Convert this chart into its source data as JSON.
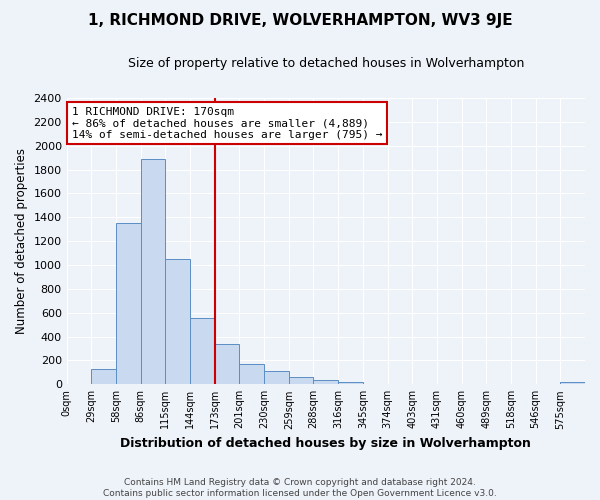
{
  "title": "1, RICHMOND DRIVE, WOLVERHAMPTON, WV3 9JE",
  "subtitle": "Size of property relative to detached houses in Wolverhampton",
  "xlabel": "Distribution of detached houses by size in Wolverhampton",
  "ylabel": "Number of detached properties",
  "footer_lines": [
    "Contains HM Land Registry data © Crown copyright and database right 2024.",
    "Contains public sector information licensed under the Open Government Licence v3.0."
  ],
  "bar_labels": [
    "0sqm",
    "29sqm",
    "58sqm",
    "86sqm",
    "115sqm",
    "144sqm",
    "173sqm",
    "201sqm",
    "230sqm",
    "259sqm",
    "288sqm",
    "316sqm",
    "345sqm",
    "374sqm",
    "403sqm",
    "431sqm",
    "460sqm",
    "489sqm",
    "518sqm",
    "546sqm",
    "575sqm"
  ],
  "bar_values": [
    0,
    130,
    1350,
    1890,
    1050,
    560,
    340,
    170,
    110,
    60,
    35,
    20,
    0,
    0,
    0,
    0,
    0,
    0,
    0,
    0,
    20
  ],
  "bar_color": "#c8d9f0",
  "bar_edge_color": "#5b8ec4",
  "ylim": [
    0,
    2400
  ],
  "yticks": [
    0,
    200,
    400,
    600,
    800,
    1000,
    1200,
    1400,
    1600,
    1800,
    2000,
    2200,
    2400
  ],
  "vline_x": 6,
  "vline_color": "#cc0000",
  "annotation_title": "1 RICHMOND DRIVE: 170sqm",
  "annotation_line1": "← 86% of detached houses are smaller (4,889)",
  "annotation_line2": "14% of semi-detached houses are larger (795) →",
  "annotation_box_color": "#ffffff",
  "annotation_box_edge": "#cc0000",
  "bg_color": "#eef2f9",
  "grid_color": "#ffffff",
  "title_fontsize": 11,
  "subtitle_fontsize": 9
}
